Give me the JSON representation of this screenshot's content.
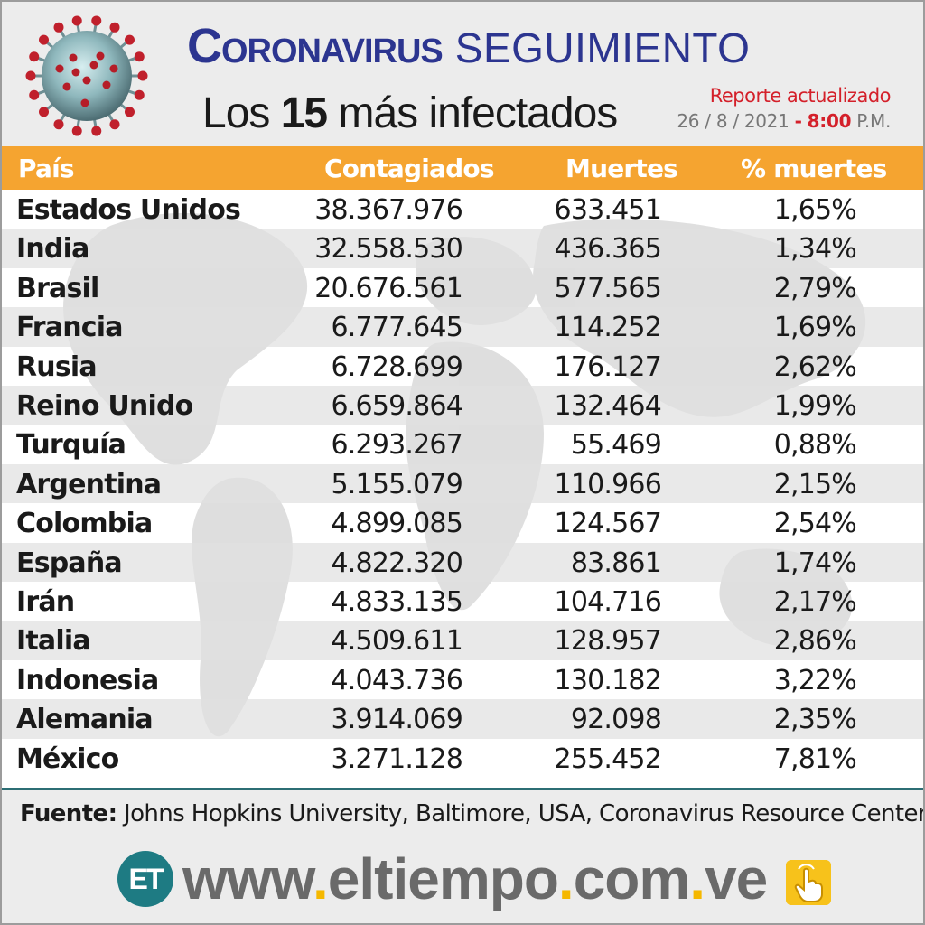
{
  "header": {
    "title_main": "Coronavirus",
    "title_sub": "SEGUIMIENTO",
    "subtitle_prefix": "Los ",
    "subtitle_number": "15",
    "subtitle_suffix": " más infectados",
    "report_label": "Reporte actualizado",
    "report_day": "26",
    "report_month": "8",
    "report_year": "2021",
    "report_time": "8:00",
    "report_ampm": "P.M.",
    "date_separator": "/",
    "time_separator": "-"
  },
  "chart_data": {
    "type": "table",
    "columns": [
      "País",
      "Contagiados",
      "Muertes",
      "% muertes"
    ],
    "rows": [
      [
        "Estados Unidos",
        "38.367.976",
        "633.451",
        "1,65%"
      ],
      [
        "India",
        "32.558.530",
        "436.365",
        "1,34%"
      ],
      [
        "Brasil",
        "20.676.561",
        "577.565",
        "2,79%"
      ],
      [
        "Francia",
        "6.777.645",
        "114.252",
        "1,69%"
      ],
      [
        "Rusia",
        "6.728.699",
        "176.127",
        "2,62%"
      ],
      [
        "Reino Unido",
        "6.659.864",
        "132.464",
        "1,99%"
      ],
      [
        "Turquía",
        "6.293.267",
        "55.469",
        "0,88%"
      ],
      [
        "Argentina",
        "5.155.079",
        "110.966",
        "2,15%"
      ],
      [
        "Colombia",
        "4.899.085",
        "124.567",
        "2,54%"
      ],
      [
        "España",
        "4.822.320",
        "83.861",
        "1,74%"
      ],
      [
        "Irán",
        "4.833.135",
        "104.716",
        "2,17%"
      ],
      [
        "Italia",
        "4.509.611",
        "128.957",
        "2,86%"
      ],
      [
        "Indonesia",
        "4.043.736",
        "130.182",
        "3,22%"
      ],
      [
        "Alemania",
        "3.914.069",
        "92.098",
        "2,35%"
      ],
      [
        "México",
        "3.271.128",
        "255.452",
        "7,81%"
      ]
    ]
  },
  "footer": {
    "source_label": "Fuente:",
    "source_text": " Johns Hopkins University, Baltimore, USA, Coronavirus Resource Center",
    "logo_text": "ET",
    "url_parts": [
      "www",
      ".",
      "eltiempo",
      ".",
      "com",
      ".",
      "ve"
    ]
  },
  "colors": {
    "title_blue": "#2c3590",
    "header_orange": "#f5a430",
    "accent_red": "#d4202a",
    "brand_teal": "#1e7b83",
    "url_dot_yellow": "#f5b800"
  },
  "icons": {
    "virus": "coronavirus-illustration",
    "hand": "pointing-hand-icon",
    "map": "world-map-watermark"
  }
}
